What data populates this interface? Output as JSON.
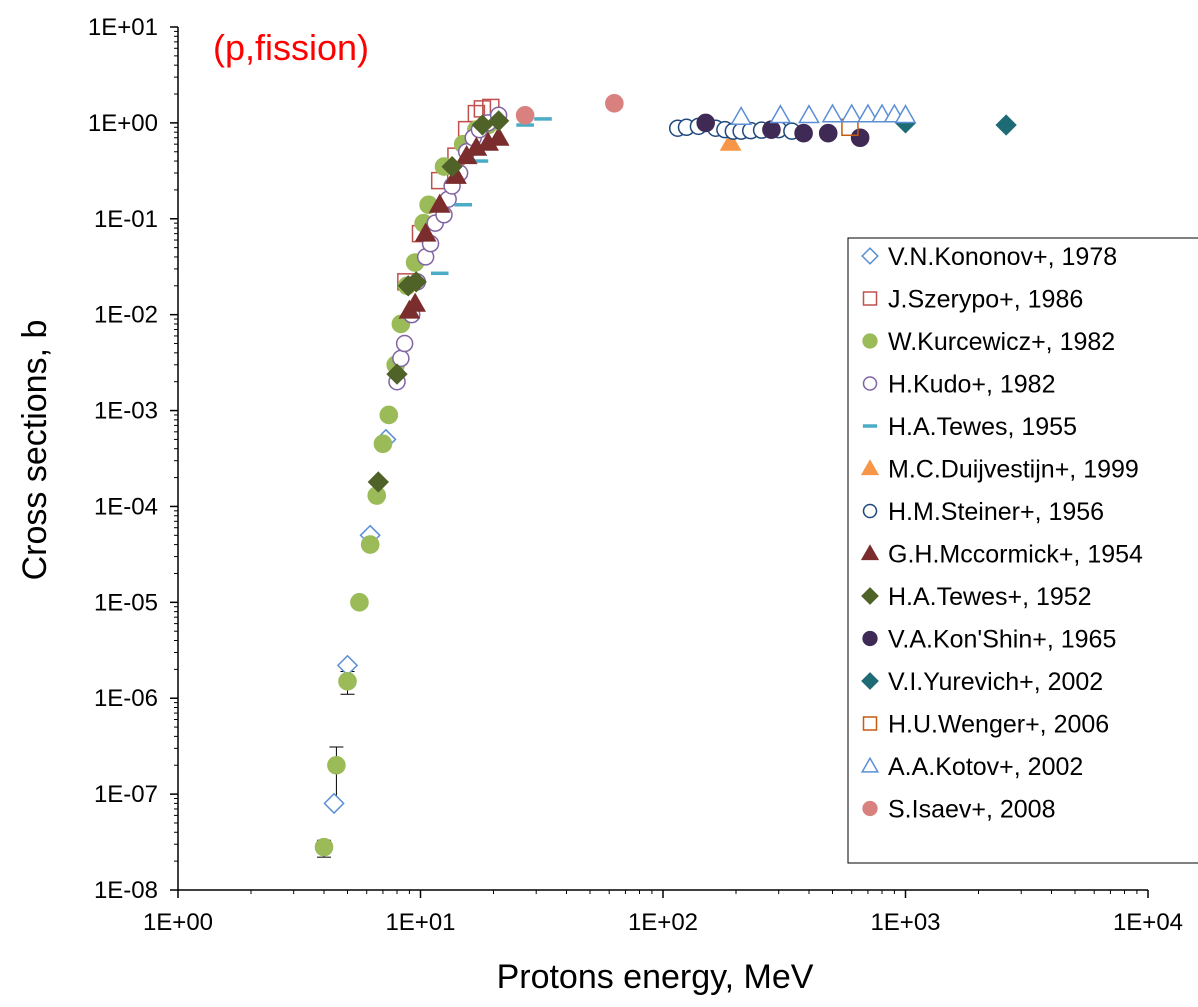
{
  "chart_data": {
    "type": "scatter",
    "xlabel": "Protons energy, MeV",
    "ylabel": "Cross sections, b",
    "x_scale": "log",
    "y_scale": "log",
    "xlim": [
      1,
      10000
    ],
    "ylim": [
      1e-08,
      10
    ],
    "x_ticks": [
      "1E+00",
      "1E+01",
      "1E+02",
      "1E+03",
      "1E+04"
    ],
    "y_ticks": [
      "1E+01",
      "1E+00",
      "1E-01",
      "1E-02",
      "1E-03",
      "1E-04",
      "1E-05",
      "1E-06",
      "1E-07",
      "1E-08"
    ],
    "annotation": {
      "text": "(p,fission)",
      "color": "#ff0000"
    },
    "grid": false,
    "legend_position": "right",
    "series": [
      {
        "name": "V.N.Kononov+, 1978",
        "marker": "diamond-open",
        "color": "#5b8fd6",
        "points": [
          [
            4.4,
            8e-08
          ],
          [
            5.0,
            2.2e-06
          ],
          [
            6.2,
            5e-05
          ],
          [
            7.2,
            0.0005
          ]
        ]
      },
      {
        "name": "J.Szerypo+, 1986",
        "marker": "square-open",
        "color": "#c0504d",
        "points": [
          [
            8.7,
            0.022
          ],
          [
            10.0,
            0.07
          ],
          [
            12.0,
            0.25
          ],
          [
            14.0,
            0.45
          ],
          [
            15.5,
            0.85
          ],
          [
            17.0,
            1.25
          ],
          [
            18.0,
            1.4
          ],
          [
            19.5,
            1.45
          ]
        ]
      },
      {
        "name": "W.Kurcewicz+, 1982",
        "marker": "circle-filled",
        "color": "#9bbb59",
        "points": [
          [
            4.0,
            2.8e-08
          ],
          [
            4.5,
            2e-07
          ],
          [
            5.0,
            1.5e-06
          ],
          [
            5.6,
            1e-05
          ],
          [
            6.2,
            4e-05
          ],
          [
            6.6,
            0.00013
          ],
          [
            7.0,
            0.00045
          ],
          [
            7.4,
            0.0009
          ],
          [
            7.9,
            0.003
          ],
          [
            8.3,
            0.008
          ],
          [
            8.8,
            0.02
          ],
          [
            9.5,
            0.035
          ],
          [
            10.3,
            0.09
          ],
          [
            10.8,
            0.14
          ],
          [
            12.5,
            0.35
          ],
          [
            15.0,
            0.6
          ],
          [
            17.0,
            0.85
          ],
          [
            19.0,
            0.95
          ]
        ]
      },
      {
        "name": "H.Kudo+, 1982",
        "marker": "circle-open",
        "color": "#8064a2",
        "points": [
          [
            8.0,
            0.002
          ],
          [
            8.3,
            0.0035
          ],
          [
            8.6,
            0.005
          ],
          [
            9.2,
            0.01
          ],
          [
            9.7,
            0.022
          ],
          [
            10.5,
            0.04
          ],
          [
            11.0,
            0.055
          ],
          [
            11.5,
            0.09
          ],
          [
            12.5,
            0.11
          ],
          [
            13.0,
            0.16
          ],
          [
            13.5,
            0.22
          ],
          [
            14.5,
            0.3
          ],
          [
            15.5,
            0.5
          ],
          [
            16.5,
            0.7
          ],
          [
            17.5,
            0.85
          ],
          [
            19.0,
            1.0
          ],
          [
            21.0,
            1.2
          ]
        ]
      },
      {
        "name": "H.A.Tewes, 1955",
        "marker": "dash",
        "color": "#4bacc6",
        "points": [
          [
            12.0,
            0.027
          ],
          [
            15.0,
            0.14
          ],
          [
            17.5,
            0.4
          ],
          [
            27.0,
            0.95
          ],
          [
            32.0,
            1.1
          ]
        ]
      },
      {
        "name": "M.C.Duijvestijn+, 1999",
        "marker": "triangle-filled",
        "color": "#f79646",
        "points": [
          [
            190.0,
            0.62
          ]
        ]
      },
      {
        "name": "H.M.Steiner+, 1956",
        "marker": "circle-open",
        "color": "#1f497d",
        "points": [
          [
            115.0,
            0.88
          ],
          [
            125.0,
            0.9
          ],
          [
            140.0,
            0.92
          ],
          [
            165.0,
            0.88
          ],
          [
            180.0,
            0.85
          ],
          [
            195.0,
            0.82
          ],
          [
            210.0,
            0.82
          ],
          [
            230.0,
            0.83
          ],
          [
            255.0,
            0.84
          ],
          [
            300.0,
            0.85
          ],
          [
            340.0,
            0.82
          ]
        ]
      },
      {
        "name": "G.H.Mccormick+, 1954",
        "marker": "triangle-filled",
        "color": "#7b2c2c",
        "points": [
          [
            9.0,
            0.011
          ],
          [
            9.5,
            0.013
          ],
          [
            10.5,
            0.07
          ],
          [
            12.0,
            0.14
          ],
          [
            14.0,
            0.28
          ],
          [
            15.5,
            0.45
          ],
          [
            17.0,
            0.55
          ],
          [
            19.0,
            0.62
          ],
          [
            21.0,
            0.7
          ]
        ]
      },
      {
        "name": "H.A.Tewes+, 1952",
        "marker": "diamond-filled",
        "color": "#4f6228",
        "points": [
          [
            8.0,
            0.0024
          ],
          [
            8.9,
            0.02
          ],
          [
            9.6,
            0.022
          ],
          [
            6.7,
            0.00018
          ],
          [
            13.5,
            0.35
          ],
          [
            18.0,
            0.95
          ],
          [
            21.0,
            1.05
          ]
        ]
      },
      {
        "name": "V.A.Kon'Shin+, 1965",
        "marker": "circle-filled",
        "color": "#3f2a56",
        "points": [
          [
            150.0,
            1.0
          ],
          [
            280.0,
            0.85
          ],
          [
            380.0,
            0.78
          ],
          [
            480.0,
            0.78
          ],
          [
            650.0,
            0.7
          ]
        ]
      },
      {
        "name": "V.I.Yurevich+, 2002",
        "marker": "diamond-filled",
        "color": "#1f6b75",
        "points": [
          [
            1000.0,
            1.0
          ],
          [
            2600.0,
            0.95
          ]
        ]
      },
      {
        "name": "H.U.Wenger+, 2006",
        "marker": "square-open",
        "color": "#c55a11",
        "points": [
          [
            590.0,
            0.9
          ]
        ]
      },
      {
        "name": "A.A.Kotov+, 2002",
        "marker": "triangle-open",
        "color": "#5b8fd6",
        "points": [
          [
            210.0,
            1.15
          ],
          [
            305.0,
            1.2
          ],
          [
            400.0,
            1.2
          ],
          [
            500.0,
            1.22
          ],
          [
            600.0,
            1.22
          ],
          [
            700.0,
            1.22
          ],
          [
            800.0,
            1.22
          ],
          [
            900.0,
            1.22
          ],
          [
            1000.0,
            1.2
          ]
        ]
      },
      {
        "name": "S.Isaev+, 2008",
        "marker": "circle-filled",
        "color": "#d9817f",
        "points": [
          [
            27.0,
            1.2
          ],
          [
            63.0,
            1.6
          ]
        ]
      }
    ],
    "error_bars": [
      {
        "x": 4.0,
        "low": 2.2e-08,
        "high": 3.3e-08
      },
      {
        "x": 4.5,
        "low": 8e-08,
        "high": 3.1e-07
      },
      {
        "x": 5.0,
        "low": 1.1e-06,
        "high": 1.9e-06
      }
    ]
  }
}
